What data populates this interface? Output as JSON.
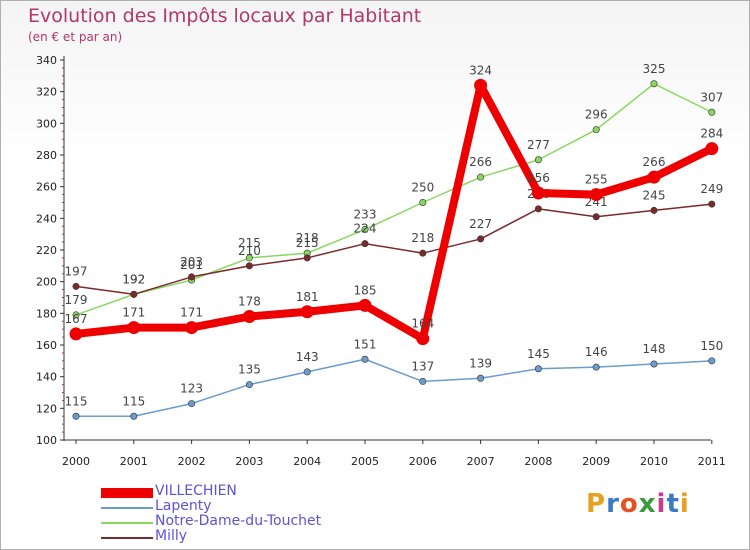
{
  "title": "Evolution des Impôts locaux par Habitant",
  "subtitle": "(en € et par an)",
  "logo": {
    "text": "Proxiti",
    "colors": [
      "#e8a020",
      "#3a78c8",
      "#e85020",
      "#3a9a40",
      "#c83a8a",
      "#3a78c8",
      "#e8a020"
    ]
  },
  "chart_data": {
    "type": "line",
    "x": [
      "2000",
      "2001",
      "2002",
      "2003",
      "2004",
      "2005",
      "2006",
      "2007",
      "2008",
      "2009",
      "2010",
      "2011"
    ],
    "ylim": [
      100,
      340
    ],
    "yticks": [
      100,
      120,
      140,
      160,
      180,
      200,
      220,
      240,
      260,
      280,
      300,
      320,
      340
    ],
    "grid": false,
    "legend": "bottom-left",
    "series": [
      {
        "name": "VILLECHIEN",
        "color": "#ee0000",
        "emphasis": true,
        "values": [
          167,
          171,
          171,
          178,
          181,
          185,
          164,
          324,
          256,
          255,
          266,
          284
        ]
      },
      {
        "name": "Lapenty",
        "color": "#6a9ccc",
        "values": [
          115,
          115,
          123,
          135,
          143,
          151,
          137,
          139,
          145,
          146,
          148,
          150
        ]
      },
      {
        "name": "Notre-Dame-du-Touchet",
        "color": "#88d860",
        "values": [
          179,
          192,
          201,
          215,
          218,
          233,
          250,
          266,
          277,
          296,
          325,
          307
        ]
      },
      {
        "name": "Milly",
        "color": "#7a2a2a",
        "values": [
          197,
          192,
          203,
          210,
          215,
          224,
          218,
          227,
          246,
          241,
          245,
          249
        ]
      }
    ]
  }
}
